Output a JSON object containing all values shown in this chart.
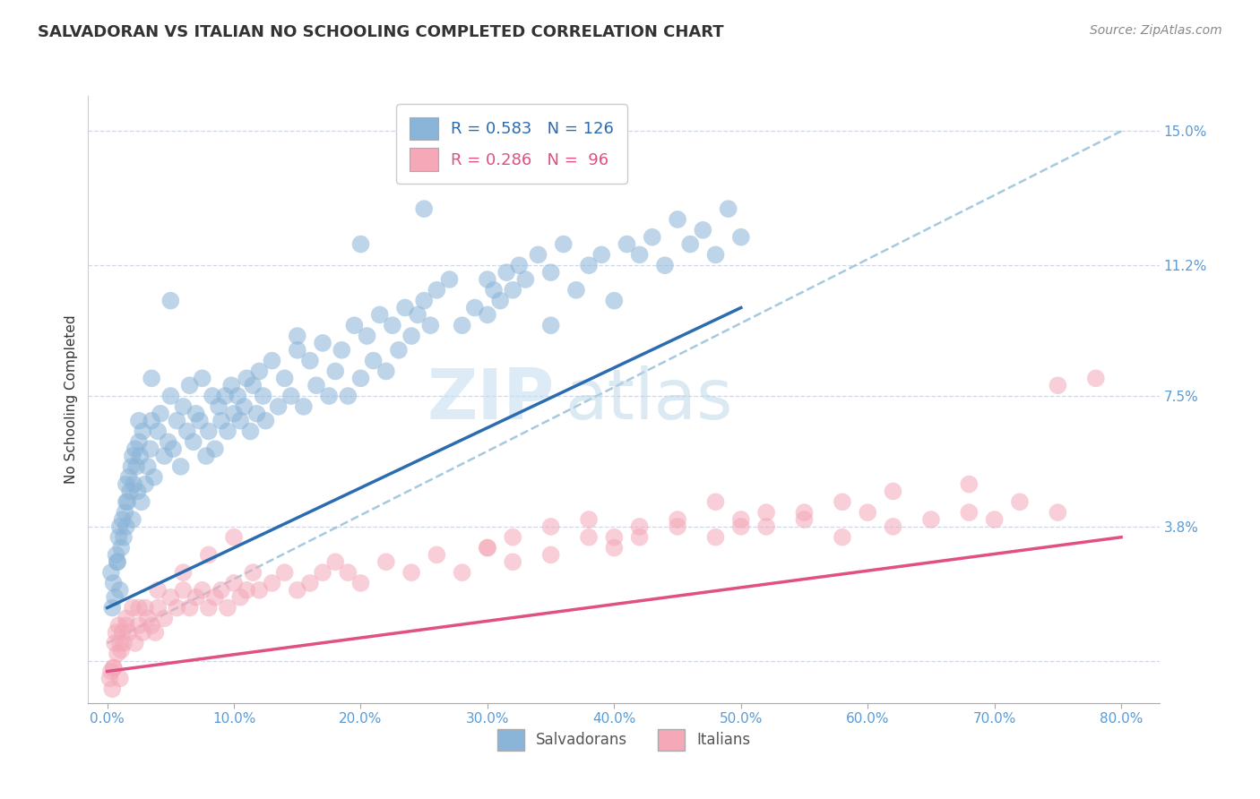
{
  "title": "SALVADORAN VS ITALIAN NO SCHOOLING COMPLETED CORRELATION CHART",
  "source": "Source: ZipAtlas.com",
  "ylabel": "No Schooling Completed",
  "xlabel_ticks": [
    "0.0%",
    "10.0%",
    "20.0%",
    "30.0%",
    "40.0%",
    "50.0%",
    "60.0%",
    "70.0%",
    "80.0%"
  ],
  "xlabel_vals": [
    0.0,
    10.0,
    20.0,
    30.0,
    40.0,
    50.0,
    60.0,
    70.0,
    80.0
  ],
  "ytick_vals": [
    0.0,
    3.8,
    7.5,
    11.2,
    15.0
  ],
  "ytick_labels": [
    "",
    "3.8%",
    "7.5%",
    "11.2%",
    "15.0%"
  ],
  "xlim": [
    -1.5,
    83.0
  ],
  "ylim": [
    -1.2,
    16.0
  ],
  "legend_blue_R": "0.583",
  "legend_blue_N": "126",
  "legend_pink_R": "0.286",
  "legend_pink_N": " 96",
  "blue_color": "#8ab4d8",
  "pink_color": "#f4a8b8",
  "blue_line_color": "#2b6cb0",
  "pink_line_color": "#e05080",
  "dash_line_color": "#90bcd8",
  "watermark_zip": "ZIP",
  "watermark_atlas": "atlas",
  "blue_scatter_x": [
    0.3,
    0.5,
    0.6,
    0.7,
    0.8,
    0.9,
    1.0,
    1.0,
    1.1,
    1.2,
    1.3,
    1.4,
    1.5,
    1.5,
    1.6,
    1.7,
    1.8,
    1.9,
    2.0,
    2.0,
    2.1,
    2.2,
    2.3,
    2.4,
    2.5,
    2.6,
    2.7,
    2.8,
    3.0,
    3.2,
    3.4,
    3.5,
    3.7,
    4.0,
    4.2,
    4.5,
    4.8,
    5.0,
    5.2,
    5.5,
    5.8,
    6.0,
    6.3,
    6.5,
    6.8,
    7.0,
    7.3,
    7.5,
    7.8,
    8.0,
    8.3,
    8.5,
    8.8,
    9.0,
    9.3,
    9.5,
    9.8,
    10.0,
    10.3,
    10.5,
    10.8,
    11.0,
    11.3,
    11.5,
    11.8,
    12.0,
    12.3,
    12.5,
    13.0,
    13.5,
    14.0,
    14.5,
    15.0,
    15.5,
    16.0,
    16.5,
    17.0,
    17.5,
    18.0,
    18.5,
    19.0,
    19.5,
    20.0,
    20.5,
    21.0,
    21.5,
    22.0,
    22.5,
    23.0,
    23.5,
    24.0,
    24.5,
    25.0,
    25.5,
    26.0,
    27.0,
    28.0,
    29.0,
    30.0,
    30.5,
    31.0,
    31.5,
    32.0,
    32.5,
    33.0,
    34.0,
    35.0,
    36.0,
    37.0,
    38.0,
    39.0,
    40.0,
    41.0,
    42.0,
    43.0,
    44.0,
    45.0,
    46.0,
    47.0,
    48.0,
    49.0,
    50.0,
    0.4,
    0.8,
    1.5,
    2.5,
    3.5,
    5.0
  ],
  "blue_scatter_y": [
    2.5,
    2.2,
    1.8,
    3.0,
    2.8,
    3.5,
    2.0,
    3.8,
    3.2,
    4.0,
    3.5,
    4.2,
    3.8,
    5.0,
    4.5,
    5.2,
    4.8,
    5.5,
    4.0,
    5.8,
    5.0,
    6.0,
    5.5,
    4.8,
    6.2,
    5.8,
    4.5,
    6.5,
    5.0,
    5.5,
    6.0,
    6.8,
    5.2,
    6.5,
    7.0,
    5.8,
    6.2,
    7.5,
    6.0,
    6.8,
    5.5,
    7.2,
    6.5,
    7.8,
    6.2,
    7.0,
    6.8,
    8.0,
    5.8,
    6.5,
    7.5,
    6.0,
    7.2,
    6.8,
    7.5,
    6.5,
    7.8,
    7.0,
    7.5,
    6.8,
    7.2,
    8.0,
    6.5,
    7.8,
    7.0,
    8.2,
    7.5,
    6.8,
    8.5,
    7.2,
    8.0,
    7.5,
    8.8,
    7.2,
    8.5,
    7.8,
    9.0,
    7.5,
    8.2,
    8.8,
    7.5,
    9.5,
    8.0,
    9.2,
    8.5,
    9.8,
    8.2,
    9.5,
    8.8,
    10.0,
    9.2,
    9.8,
    10.2,
    9.5,
    10.5,
    10.8,
    9.5,
    10.0,
    9.8,
    10.5,
    10.2,
    11.0,
    10.5,
    11.2,
    10.8,
    11.5,
    11.0,
    11.8,
    10.5,
    11.2,
    11.5,
    10.2,
    11.8,
    11.5,
    12.0,
    11.2,
    12.5,
    11.8,
    12.2,
    11.5,
    12.8,
    12.0,
    1.5,
    2.8,
    4.5,
    6.8,
    8.0,
    10.2
  ],
  "blue_scatter_extra_x": [
    25.0,
    30.0,
    35.0,
    20.0,
    15.0
  ],
  "blue_scatter_extra_y": [
    12.8,
    10.8,
    9.5,
    11.8,
    9.2
  ],
  "pink_scatter_x": [
    0.2,
    0.3,
    0.4,
    0.5,
    0.6,
    0.7,
    0.8,
    0.9,
    1.0,
    1.1,
    1.2,
    1.3,
    1.5,
    1.7,
    2.0,
    2.2,
    2.5,
    2.8,
    3.0,
    3.2,
    3.5,
    3.8,
    4.0,
    4.5,
    5.0,
    5.5,
    6.0,
    6.5,
    7.0,
    7.5,
    8.0,
    8.5,
    9.0,
    9.5,
    10.0,
    10.5,
    11.0,
    11.5,
    12.0,
    13.0,
    14.0,
    15.0,
    16.0,
    17.0,
    18.0,
    19.0,
    20.0,
    22.0,
    24.0,
    26.0,
    28.0,
    30.0,
    32.0,
    35.0,
    38.0,
    40.0,
    42.0,
    45.0,
    48.0,
    50.0,
    52.0,
    55.0,
    58.0,
    60.0,
    62.0,
    65.0,
    68.0,
    70.0,
    72.0,
    75.0,
    0.5,
    1.0,
    1.5,
    2.5,
    4.0,
    6.0,
    8.0,
    10.0,
    35.0,
    40.0,
    45.0,
    50.0,
    55.0,
    30.0,
    32.0,
    38.0,
    42.0,
    48.0,
    52.0,
    58.0,
    62.0,
    68.0,
    75.0,
    78.0
  ],
  "pink_scatter_y": [
    -0.5,
    -0.3,
    -0.8,
    -0.2,
    0.5,
    0.8,
    0.2,
    1.0,
    -0.5,
    0.3,
    0.8,
    0.5,
    1.2,
    0.8,
    1.5,
    0.5,
    1.0,
    0.8,
    1.5,
    1.2,
    1.0,
    0.8,
    1.5,
    1.2,
    1.8,
    1.5,
    2.0,
    1.5,
    1.8,
    2.0,
    1.5,
    1.8,
    2.0,
    1.5,
    2.2,
    1.8,
    2.0,
    2.5,
    2.0,
    2.2,
    2.5,
    2.0,
    2.2,
    2.5,
    2.8,
    2.5,
    2.2,
    2.8,
    2.5,
    3.0,
    2.5,
    3.2,
    2.8,
    3.0,
    3.5,
    3.2,
    3.5,
    3.8,
    3.5,
    4.0,
    3.8,
    4.0,
    3.5,
    4.2,
    3.8,
    4.0,
    4.2,
    4.0,
    4.5,
    4.2,
    -0.2,
    0.5,
    1.0,
    1.5,
    2.0,
    2.5,
    3.0,
    3.5,
    3.8,
    3.5,
    4.0,
    3.8,
    4.2,
    3.2,
    3.5,
    4.0,
    3.8,
    4.5,
    4.2,
    4.5,
    4.8,
    5.0,
    7.8,
    8.0
  ],
  "blue_trend_x": [
    0.0,
    50.0
  ],
  "blue_trend_y": [
    1.5,
    10.0
  ],
  "pink_trend_x": [
    0.0,
    80.0
  ],
  "pink_trend_y": [
    -0.3,
    3.5
  ],
  "dash_trend_x": [
    0.0,
    80.0
  ],
  "dash_trend_y": [
    0.5,
    15.0
  ],
  "background_color": "#ffffff",
  "grid_color": "#d0d8e8"
}
